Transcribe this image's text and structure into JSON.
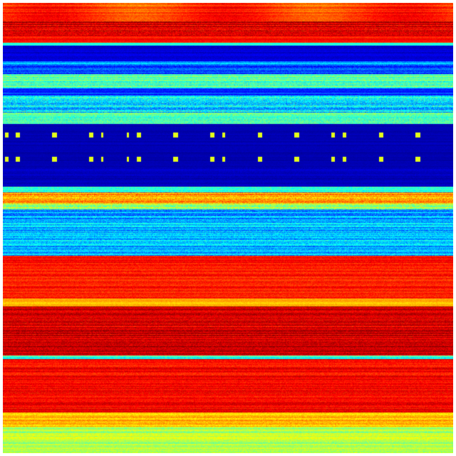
{
  "colormap": {
    "name": "jet",
    "stops": [
      "#00007f",
      "#0000ff",
      "#007fff",
      "#00ffff",
      "#7fff7f",
      "#ffff00",
      "#ff7f00",
      "#ff0000",
      "#7f0000"
    ]
  }
}
